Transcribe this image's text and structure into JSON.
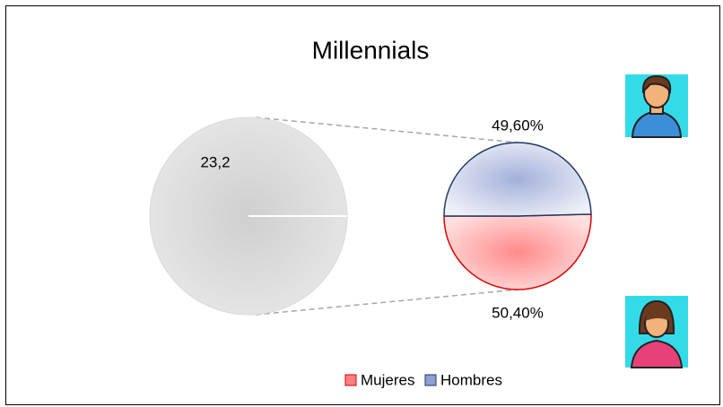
{
  "chart_data": {
    "type": "pie",
    "title": "Millennials",
    "main_value": 23.2,
    "main_value_label": "23,2",
    "main_color": "#d9d9d9",
    "categories": [
      "Mujeres",
      "Hombres"
    ],
    "values": [
      50.4,
      49.6
    ],
    "value_labels": [
      "50,40%",
      "49,60%"
    ],
    "colors": [
      "#ff8080",
      "#8e9fd0"
    ],
    "stroke_colors": [
      "#e00000",
      "#1f3864"
    ],
    "legend": "bottom"
  }
}
